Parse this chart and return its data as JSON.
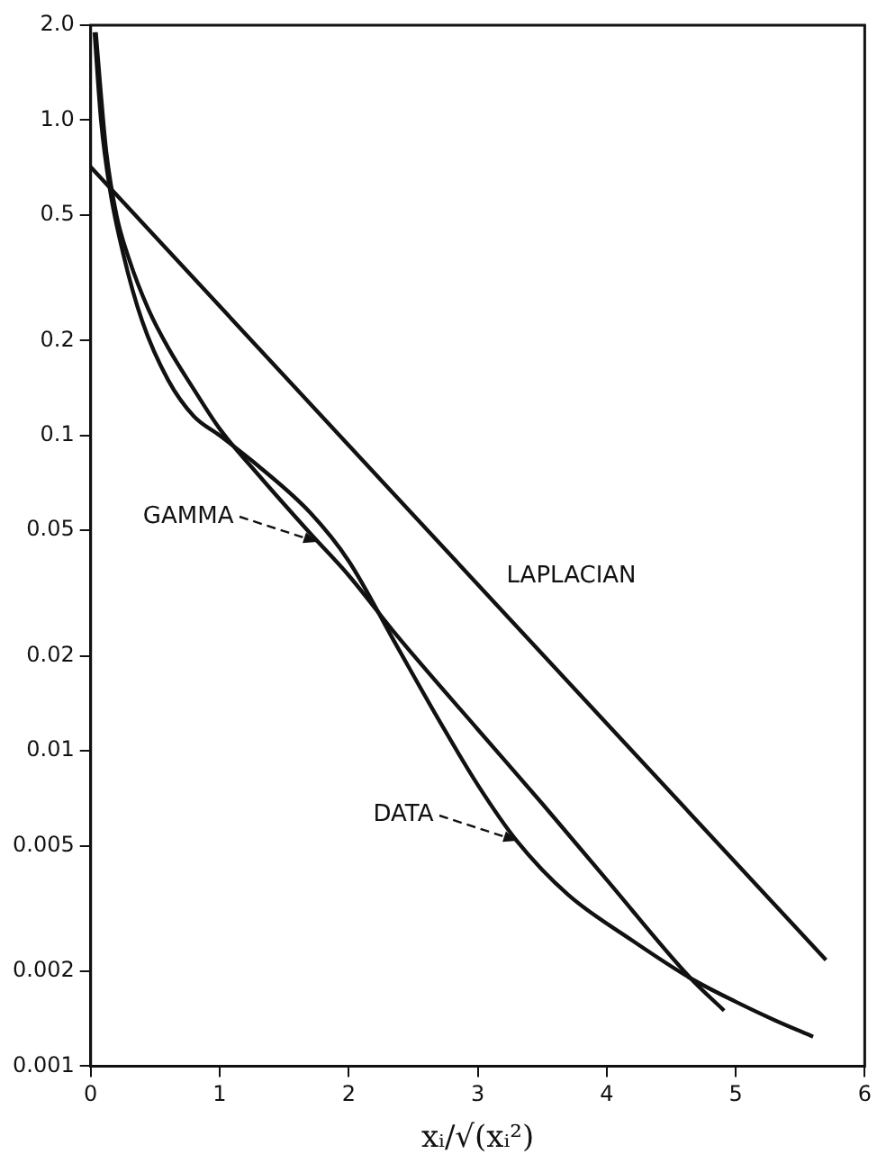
{
  "chart_data": {
    "type": "line",
    "xlabel": "xᵢ/√(xᵢ²)",
    "log": "y",
    "grid": false,
    "legend": false,
    "marker": "none",
    "line_style": "solid",
    "xlim": [
      0,
      6
    ],
    "xticks": [
      0,
      1,
      2,
      3,
      4,
      5,
      6
    ],
    "ylim": [
      0.001,
      2
    ],
    "yticks": [
      {
        "value": 0.001,
        "label": "0.001"
      },
      {
        "value": 0.002,
        "label": "0.002"
      },
      {
        "value": 0.005,
        "label": "0.005"
      },
      {
        "value": 0.01,
        "label": "0.01"
      },
      {
        "value": 0.02,
        "label": "0.02"
      },
      {
        "value": 0.05,
        "label": "0.05"
      },
      {
        "value": 0.1,
        "label": "0.1"
      },
      {
        "value": 0.2,
        "label": "0.2"
      },
      {
        "value": 0.5,
        "label": "0.5"
      },
      {
        "value": 1,
        "label": "1.0"
      },
      {
        "value": 2,
        "label": "2.0"
      }
    ],
    "series": [
      {
        "color": "#111111",
        "x": [
          0,
          5.7
        ],
        "values": [
          0.71,
          0.00217
        ]
      },
      {
        "color": "#111111",
        "x": [
          0.04,
          0.08,
          0.12,
          0.2,
          0.3,
          0.45,
          0.6,
          0.8,
          1.0,
          1.3,
          1.7,
          2.0,
          2.37,
          3.0,
          3.5,
          4.0,
          4.65,
          4.91
        ],
        "values": [
          1.9,
          1.2,
          0.8,
          0.5,
          0.36,
          0.25,
          0.19,
          0.14,
          0.105,
          0.075,
          0.049,
          0.036,
          0.0233,
          0.0117,
          0.0068,
          0.0039,
          0.0019,
          0.0015
        ]
      },
      {
        "color": "#111111",
        "x": [
          0.03,
          0.08,
          0.15,
          0.25,
          0.4,
          0.6,
          0.8,
          1.0,
          1.3,
          1.7,
          2.0,
          2.37,
          2.7,
          3.0,
          3.3,
          3.7,
          4.2,
          4.65,
          5.0,
          5.3,
          5.6
        ],
        "values": [
          1.9,
          1.0,
          0.6,
          0.38,
          0.23,
          0.15,
          0.115,
          0.1,
          0.08,
          0.057,
          0.04,
          0.0216,
          0.0125,
          0.0078,
          0.0052,
          0.0035,
          0.0025,
          0.0019,
          0.0016,
          0.0014,
          0.00124
        ]
      }
    ],
    "annotations": [
      {
        "text": "LAPLACIAN",
        "x": 3.0,
        "y": 0.034
      },
      {
        "text": "GAMMA",
        "x": 1.75,
        "y": 0.046
      },
      {
        "text": "DATA",
        "x": 3.3,
        "y": 0.0052
      }
    ]
  }
}
